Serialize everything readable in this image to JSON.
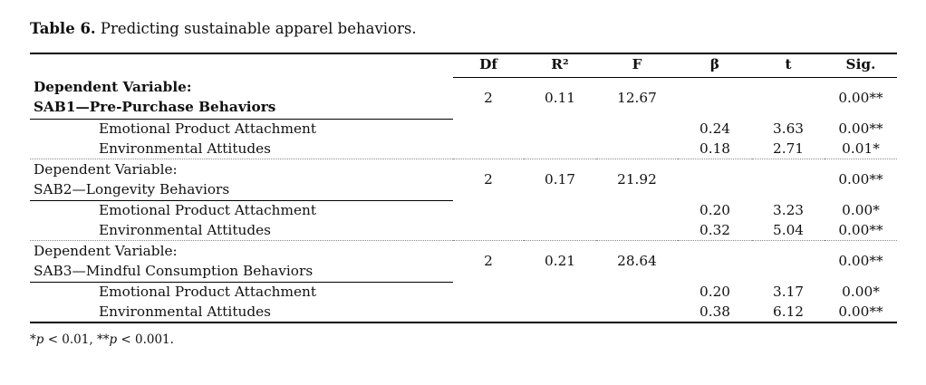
{
  "caption": {
    "label": "Table 6.",
    "text": " Predicting sustainable apparel behaviors."
  },
  "table": {
    "headers": {
      "df": "Df",
      "r2": "R²",
      "f": "F",
      "beta": "β",
      "t": "t",
      "sig": "Sig."
    },
    "blocks": [
      {
        "dv_line1": "Dependent Variable:",
        "dv_line2": "SAB1—Pre-Purchase Behaviors",
        "df": "2",
        "r2": "0.11",
        "f": "12.67",
        "sig": "0.00**",
        "predictors": [
          {
            "label": "Emotional Product Attachment",
            "beta": "0.24",
            "t": "3.63",
            "sig": "0.00**"
          },
          {
            "label": "Environmental Attitudes",
            "beta": "0.18",
            "t": "2.71",
            "sig": "0.01*"
          }
        ]
      },
      {
        "dv_line1": "Dependent Variable:",
        "dv_line2": "SAB2—Longevity Behaviors",
        "df": "2",
        "r2": "0.17",
        "f": "21.92",
        "sig": "0.00**",
        "predictors": [
          {
            "label": "Emotional Product Attachment",
            "beta": "0.20",
            "t": "3.23",
            "sig": "0.00*"
          },
          {
            "label": "Environmental Attitudes",
            "beta": "0.32",
            "t": "5.04",
            "sig": "0.00**"
          }
        ]
      },
      {
        "dv_line1": "Dependent Variable:",
        "dv_line2": "SAB3—Mindful Consumption Behaviors",
        "df": "2",
        "r2": "0.21",
        "f": "28.64",
        "sig": "0.00**",
        "predictors": [
          {
            "label": "Emotional Product Attachment",
            "beta": "0.20",
            "t": "3.17",
            "sig": "0.00*"
          },
          {
            "label": "Environmental Attitudes",
            "beta": "0.38",
            "t": "6.12",
            "sig": "0.00**"
          }
        ]
      }
    ]
  },
  "footnote": {
    "star1": "*",
    "p1": "p",
    "mid": " < 0.01, **",
    "p2": "p",
    "end": " < 0.001."
  }
}
